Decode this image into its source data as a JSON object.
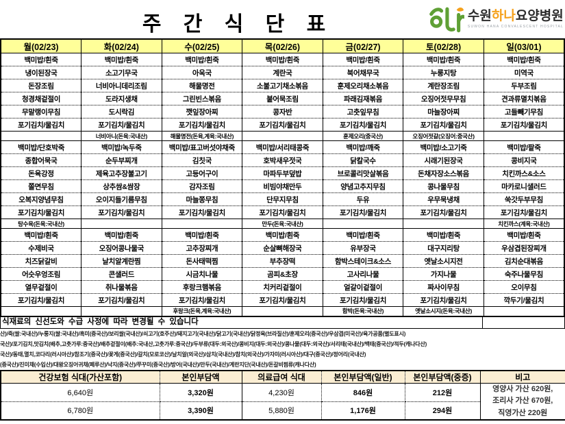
{
  "page_title": "주 간 식 단 표",
  "logo": {
    "name_prefix": "수원",
    "name_mid": "하나",
    "name_suffix": "요양병원",
    "subtitle": "SUWON HANA CONVALESCENT HOSPITAL"
  },
  "colors": {
    "day_header_bg": "#ffff99",
    "summary_header_bg": "#fbeed3",
    "logo_green": "#5fa035",
    "logo_orange": "#f5a11c"
  },
  "days": [
    {
      "label": "월(02/23)",
      "breakfast": [
        "백미밥/흰죽",
        "냉이된장국",
        "돈장조림",
        "청경채겉절이",
        "무말랭이무침",
        "포기김치/물김치"
      ],
      "breakfast_note": "",
      "lunch": [
        "백미밥/단호박죽",
        "종합어묵국",
        "돈육강정",
        "쫄면무침",
        "오복지양념무침",
        "포기김치/물김치"
      ],
      "lunch_note": "탕수육(돈육:국내산)",
      "dinner": [
        "백미밥/흰죽",
        "수제비국",
        "치즈닭갈비",
        "어슷우엉조림",
        "열무겉절이",
        "포기김치/물김치"
      ],
      "dinner_note": ""
    },
    {
      "label": "화(02/24)",
      "breakfast": [
        "백미밥/흰죽",
        "소고기무국",
        "너비아니데리조림",
        "도라지생채",
        "도시락김",
        "포기김치/물김치"
      ],
      "breakfast_note": "너비아니(돈육:국내산)",
      "lunch": [
        "백미밥/녹두죽",
        "순두부찌개",
        "제육고추장불고기",
        "상추쌈&쌈장",
        "오이지들기름무침",
        "포기김치/물김치"
      ],
      "lunch_note": "",
      "dinner": [
        "백미밥/흰죽",
        "오징어콩나물국",
        "날치알계란찜",
        "콘샐러드",
        "취나물볶음",
        "포기김치/물김치"
      ],
      "dinner_note": ""
    },
    {
      "label": "수(02/25)",
      "breakfast": [
        "백미밥/흰죽",
        "아욱국",
        "해물명전",
        "그린빈스볶음",
        "깻잎장아찌",
        "포기김치/물김치"
      ],
      "breakfast_note": "해물명전(돈육,계육:국내산)",
      "lunch": [
        "백미밥/표고버섯야채죽",
        "김칫국",
        "고등어구이",
        "감자조림",
        "마늘쫑무침",
        "포기김치/물김치"
      ],
      "lunch_note": "",
      "dinner": [
        "백미밥/흰죽",
        "고추장찌개",
        "돈사태떡찜",
        "시금치나물",
        "후랑크햄볶음",
        "포기김치/물김치"
      ],
      "dinner_note": "후랑크(돈육,계육:국내산)"
    },
    {
      "label": "목(02/26)",
      "breakfast": [
        "백미밥/흰죽",
        "계란국",
        "소불고기채소볶음",
        "붙어묵조림",
        "콩자반",
        "포기김치/물김치"
      ],
      "breakfast_note": "",
      "lunch": [
        "백미밥/서리태콩죽",
        "호박새우젓국",
        "마파두부덮밥",
        "비빔야채만두",
        "단무지무침",
        "포기김치/물김치"
      ],
      "lunch_note": "만두(돈육:국내산)",
      "dinner": [
        "백미밥/흰죽",
        "순살뼈해장국",
        "부추장떡",
        "곰피&초장",
        "치커리겉절이",
        "포기김치/물김치"
      ],
      "dinner_note": ""
    },
    {
      "label": "금(02/27)",
      "breakfast": [
        "백미밥/흰죽",
        "북어채무국",
        "훈제오리채소볶음",
        "파래김재볶음",
        "고춧잎무침",
        "포기김치/물김치"
      ],
      "breakfast_note": "훈제오리(중국산)",
      "lunch": [
        "백미밥/깨죽",
        "닭칼국수",
        "브로콜리맛살볶음",
        "양념고추지무침",
        "두유",
        "포기김치/물김치"
      ],
      "lunch_note": "",
      "dinner": [
        "백미밥/흰죽",
        "유부장국",
        "함박스테이크&소스",
        "고사리나물",
        "얼갈이겉절이",
        "포기김치/물김치"
      ],
      "dinner_note": "함박(돈육:국내산)"
    },
    {
      "label": "토(02/28)",
      "breakfast": [
        "백미밥/흰죽",
        "누룽지탕",
        "계란장조림",
        "오징어젓무무침",
        "마늘장아찌",
        "포기김치/물김치"
      ],
      "breakfast_note": "오징어젓갈(오징어:중국산)",
      "lunch": [
        "백미밥/소고기죽",
        "시래기된장국",
        "돈채자장소스볶음",
        "콩나물무침",
        "우무묵냉채",
        "포기김치/물김치"
      ],
      "lunch_note": "",
      "dinner": [
        "백미밥/흰죽",
        "대구지리탕",
        "옛날소시지전",
        "가지나물",
        "짜사이무침",
        "포기김치/물김치"
      ],
      "dinner_note": "옛날소시지(돈육:국내산)"
    },
    {
      "label": "일(03/01)",
      "breakfast": [
        "백미밥/흰죽",
        "미역국",
        "두부조림",
        "견과류멸치볶음",
        "고들빼기무침",
        "포기김치/물김치"
      ],
      "breakfast_note": "",
      "lunch": [
        "백미밥/팥죽",
        "콩비지국",
        "치킨까스&소스",
        "마카로니샐러드",
        "쑥갓두부무침",
        "포기김치/물김치"
      ],
      "lunch_note": "치킨까스(계육:국내산)",
      "dinner": [
        "백미밥/흰죽",
        "우삼겹된장찌개",
        "김치순대볶음",
        "숙주나물무침",
        "오이무침",
        "깍두기/물김치"
      ],
      "dinner_note": ""
    }
  ],
  "notice": "식재료의  신선도와 수급 사정에 따라 변경될 수 있습니다",
  "origin_lines": [
    "산)/죽(쌀:국내산)/누룽지(쌀:국내산)/흑미(중국산)/보리쌀(국내산)/쇠고기(호주산)/돼지고기(국내산)/닭고기(국내산)/닭정육(브라질산)/훈제오리(중국산)/우삼겹(미국산)/육가공품(별도표시)",
    "국산)/포기김치,맛김치(배추,고춧가루:중국산)/배추겉절이(배추:국내산,고춧가루:중국산)/두부류(대두:외국산)/콩비지(대두:외국산)/콩나물(대두:외국산)/서리태(국내산)/백태(중국산)/적두(캐나다산)",
    "국산)/동태,멸치,코다리(러시아산)/참조기(중국산)/꽃게(중국산)/갈치(모로코산)/날치알(외국산)/삼치(국내산)/참치(외국산)/가자미(러시아산)/대구(중국산)/정어리(국내산)",
    "(중국산)/진미채(수입산)/대왕오징어귀채(페루산)/낙지(중국산)/쭈꾸미(중국산)/방어(국내산)/만두(국내산)/계란지단(국내산)/돈갈비찜류(캐나다산)"
  ],
  "summary_table": {
    "headers": [
      "건강보험 식대(가산포함)",
      "본인부담액",
      "의료급여 식대",
      "본인부담액(일반)",
      "본인부담액(중증)",
      "비고"
    ],
    "rows": [
      [
        "6,640원",
        "3,320원",
        "4,230원",
        "846원",
        "212원"
      ],
      [
        "6,780원",
        "3,390원",
        "5,880원",
        "1,176원",
        "294원"
      ]
    ],
    "note_lines": [
      "영양사 가산 620원,",
      "조리사 가산 670원,",
      "직영가산 220원"
    ]
  }
}
